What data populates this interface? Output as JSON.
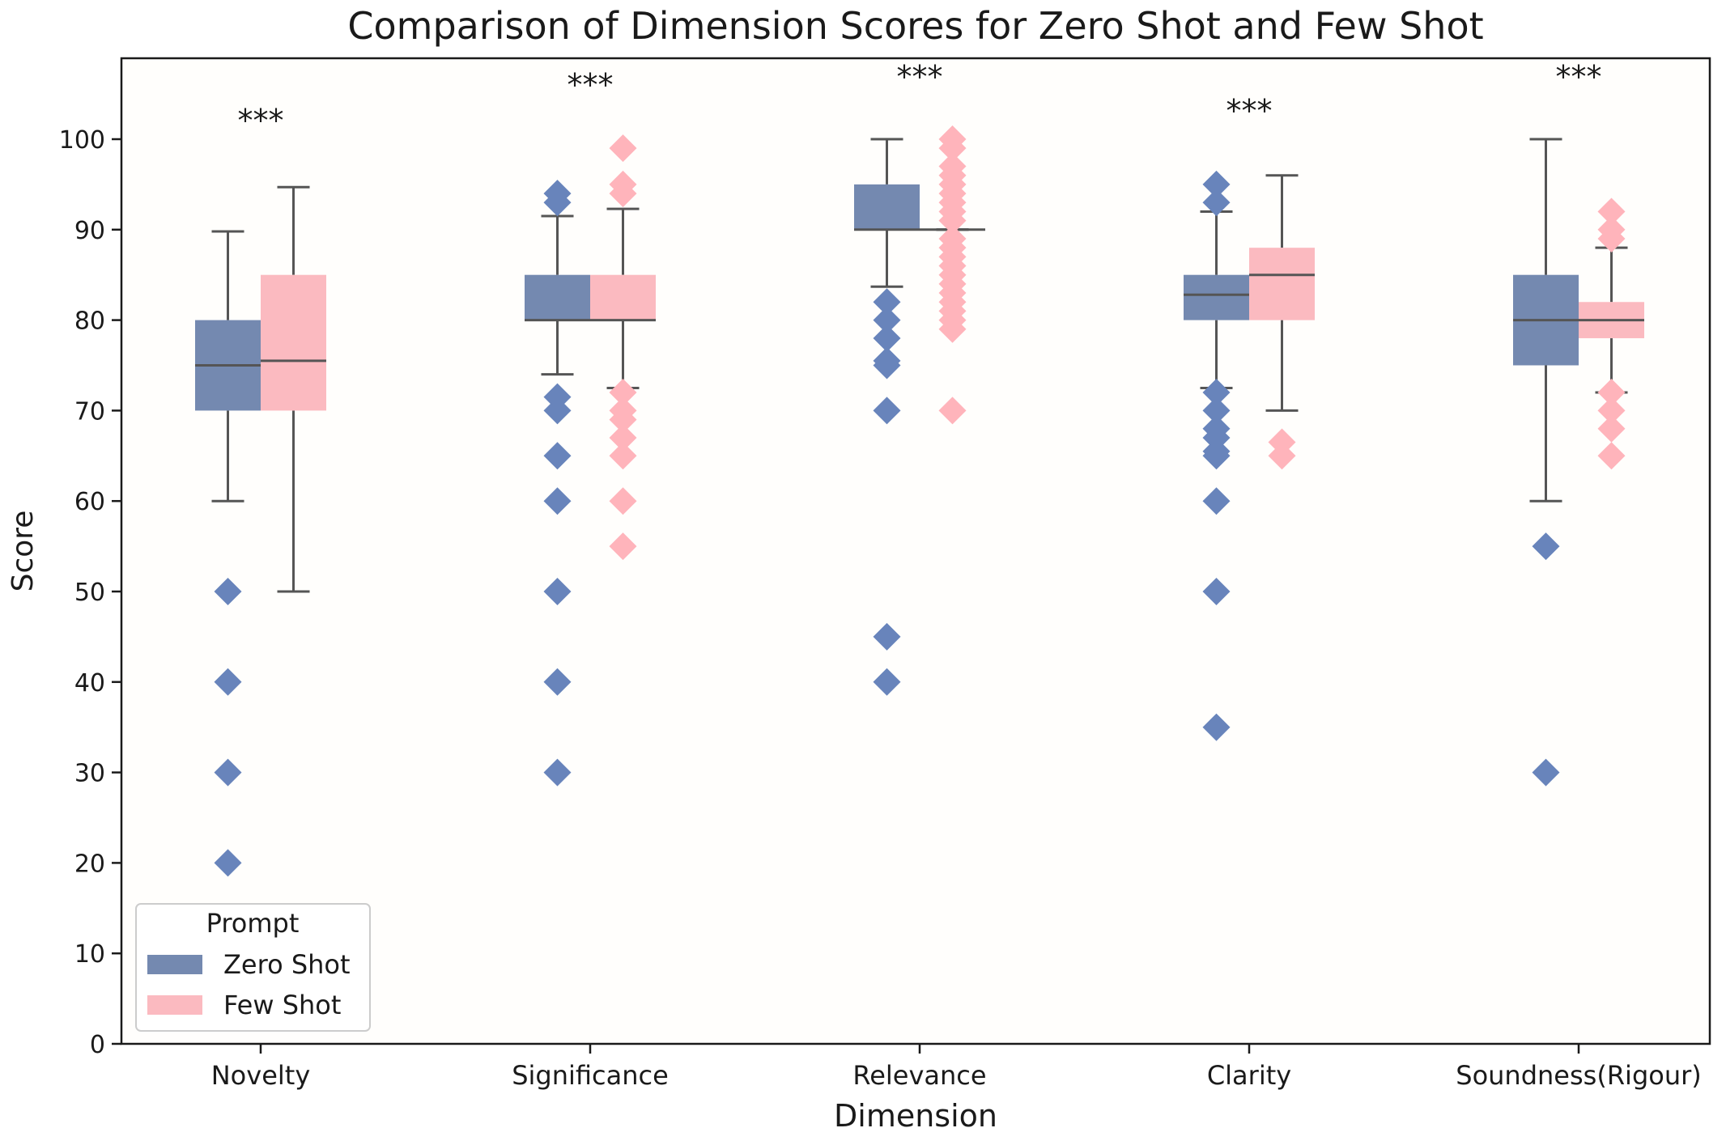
{
  "chart_data": {
    "type": "box",
    "title": "Comparison of Dimension Scores for Zero Shot and Few Shot",
    "xlabel": "Dimension",
    "ylabel": "Score",
    "ylim": [
      0,
      108
    ],
    "yticks": [
      0,
      10,
      20,
      30,
      40,
      50,
      60,
      70,
      80,
      90,
      100
    ],
    "categories": [
      "Novelty",
      "Significance",
      "Relevance",
      "Clarity",
      "Soundness(Rigour)"
    ],
    "significance": [
      "***",
      "***",
      "***",
      "***",
      "***"
    ],
    "legend": {
      "title": "Prompt",
      "position": "lower-left"
    },
    "grid": false,
    "series": [
      {
        "name": "Zero Shot",
        "color": "#7489b0",
        "outlier_color": "#6884bb",
        "boxes": [
          {
            "q1": 70,
            "median": 75,
            "q3": 80,
            "whisker_low": 60,
            "whisker_high": 89.8,
            "outliers": [
              50,
              40,
              30,
              20
            ]
          },
          {
            "q1": 80,
            "median": 80,
            "q3": 85,
            "whisker_low": 74,
            "whisker_high": 91.5,
            "outliers": [
              94,
              93,
              71.5,
              70,
              65,
              60,
              50,
              40,
              30
            ]
          },
          {
            "q1": 90,
            "median": 90,
            "q3": 95,
            "whisker_low": 83.7,
            "whisker_high": 100,
            "outliers": [
              82,
              80,
              78,
              75.5,
              75,
              70,
              45,
              40
            ]
          },
          {
            "q1": 80,
            "median": 82.8,
            "q3": 85,
            "whisker_low": 72.5,
            "whisker_high": 92,
            "outliers": [
              95,
              93,
              72,
              70,
              68,
              67,
              65.5,
              65,
              60,
              50,
              35
            ]
          },
          {
            "q1": 75,
            "median": 80,
            "q3": 85,
            "whisker_low": 60,
            "whisker_high": 100,
            "outliers": [
              55,
              30
            ]
          }
        ]
      },
      {
        "name": "Few Shot",
        "color": "#fbbac0",
        "outlier_color": "#ffb4bb",
        "boxes": [
          {
            "q1": 70,
            "median": 75.5,
            "q3": 85,
            "whisker_low": 50,
            "whisker_high": 94.7,
            "outliers": []
          },
          {
            "q1": 80,
            "median": 80,
            "q3": 85,
            "whisker_low": 72.5,
            "whisker_high": 92.3,
            "outliers": [
              99,
              95,
              94,
              72,
              70,
              69,
              67,
              65,
              60,
              55
            ]
          },
          {
            "q1": 90,
            "median": 90,
            "q3": 90,
            "whisker_low": 90,
            "whisker_high": 90,
            "outliers": [
              100,
              99,
              97,
              96,
              95,
              94,
              93,
              92,
              91,
              89,
              88,
              87,
              86,
              85,
              84,
              83,
              82,
              81,
              80,
              79,
              70
            ]
          },
          {
            "q1": 80,
            "median": 85,
            "q3": 88,
            "whisker_low": 70,
            "whisker_high": 96,
            "outliers": [
              66.5,
              65
            ]
          },
          {
            "q1": 78,
            "median": 80,
            "q3": 82,
            "whisker_low": 72,
            "whisker_high": 88,
            "outliers": [
              92,
              90,
              89,
              72,
              70,
              68,
              65
            ]
          }
        ]
      }
    ]
  }
}
